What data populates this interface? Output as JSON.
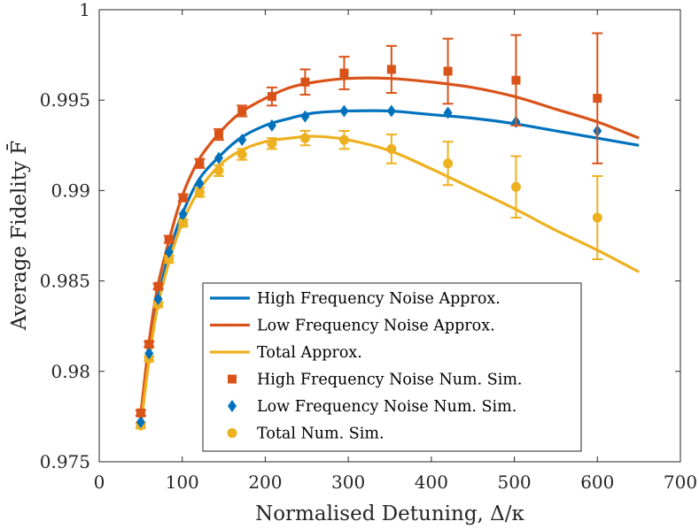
{
  "chart_data": {
    "type": "line",
    "xlabel": "Normalised Detuning, Δ/κ",
    "ylabel": "Average Fidelity F̄",
    "xlim": [
      0,
      700
    ],
    "ylim": [
      0.975,
      1.0
    ],
    "xticks": [
      "0",
      "100",
      "200",
      "300",
      "400",
      "500",
      "600",
      "700"
    ],
    "yticks": [
      "0.975",
      "0.98",
      "0.985",
      "0.99",
      "0.995",
      "1"
    ],
    "grid": false,
    "legend_position": "lower-center",
    "colors": {
      "blue": "#0072BD",
      "orange": "#D95319",
      "yellow": "#EDB120"
    },
    "series": [
      {
        "name": "High Frequency Noise Approx.",
        "kind": "line",
        "color": "#0072BD",
        "x": [
          50,
          60,
          70,
          85,
          100,
          120,
          145,
          170,
          200,
          230,
          260,
          300,
          350,
          400,
          450,
          500,
          550,
          600,
          650
        ],
        "y": [
          0.9773,
          0.9808,
          0.9838,
          0.9867,
          0.9887,
          0.9906,
          0.9919,
          0.9929,
          0.9936,
          0.994,
          0.9943,
          0.9944,
          0.9944,
          0.9942,
          0.994,
          0.9937,
          0.9933,
          0.9929,
          0.9925
        ]
      },
      {
        "name": "Low Frequency Noise Approx.",
        "kind": "line",
        "color": "#D95319",
        "x": [
          50,
          60,
          70,
          85,
          100,
          120,
          145,
          170,
          200,
          230,
          260,
          300,
          350,
          400,
          450,
          500,
          550,
          600,
          650
        ],
        "y": [
          0.9776,
          0.9816,
          0.9846,
          0.9874,
          0.9897,
          0.9917,
          0.9932,
          0.9943,
          0.9951,
          0.9957,
          0.996,
          0.9962,
          0.9962,
          0.996,
          0.9957,
          0.9952,
          0.9945,
          0.9938,
          0.9929
        ]
      },
      {
        "name": "Total Approx.",
        "kind": "line",
        "color": "#EDB120",
        "x": [
          50,
          60,
          70,
          85,
          100,
          120,
          145,
          170,
          200,
          230,
          260,
          300,
          350,
          400,
          450,
          500,
          550,
          600,
          650
        ],
        "y": [
          0.977,
          0.9806,
          0.9835,
          0.9862,
          0.9882,
          0.99,
          0.9914,
          0.9922,
          0.9927,
          0.9929,
          0.993,
          0.9928,
          0.9922,
          0.9912,
          0.9901,
          0.989,
          0.9878,
          0.9867,
          0.9855
        ]
      },
      {
        "name": "High Frequency Noise Num. Sim.",
        "kind": "scatter",
        "marker": "square",
        "color": "#D95319",
        "x": [
          50,
          60,
          71,
          84,
          101,
          121,
          144,
          172,
          208,
          248,
          295,
          352,
          420,
          502,
          600
        ],
        "y": [
          0.9777,
          0.9815,
          0.9847,
          0.9873,
          0.9896,
          0.9915,
          0.9931,
          0.9944,
          0.9952,
          0.996,
          0.9965,
          0.9967,
          0.9966,
          0.9961,
          0.9951
        ],
        "err": [
          0.00015,
          0.00015,
          0.00015,
          0.0002,
          0.0002,
          0.00025,
          0.0003,
          0.0003,
          0.0005,
          0.0007,
          0.0009,
          0.0013,
          0.0018,
          0.0025,
          0.0036
        ]
      },
      {
        "name": "Low Frequency Noise Num. Sim.",
        "kind": "scatter",
        "marker": "diamond",
        "color": "#0072BD",
        "x": [
          50,
          60,
          71,
          84,
          101,
          121,
          144,
          172,
          208,
          248,
          295,
          352,
          420,
          502,
          600
        ],
        "y": [
          0.9772,
          0.981,
          0.984,
          0.9866,
          0.9887,
          0.9904,
          0.9918,
          0.9928,
          0.9936,
          0.9941,
          0.9944,
          0.9944,
          0.9943,
          0.9938,
          0.9933
        ],
        "err": []
      },
      {
        "name": "Total Num. Sim.",
        "kind": "scatter",
        "marker": "circle",
        "color": "#EDB120",
        "x": [
          50,
          60,
          71,
          84,
          101,
          121,
          144,
          172,
          208,
          248,
          295,
          352,
          420,
          502,
          600
        ],
        "y": [
          0.977,
          0.9807,
          0.9837,
          0.9862,
          0.9882,
          0.9899,
          0.9911,
          0.992,
          0.9926,
          0.9929,
          0.9928,
          0.9923,
          0.9915,
          0.9902,
          0.9885
        ],
        "err": [
          0.00015,
          0.00015,
          0.00015,
          0.0002,
          0.0002,
          0.00025,
          0.0003,
          0.0003,
          0.0003,
          0.0004,
          0.0005,
          0.0008,
          0.0012,
          0.0017,
          0.0023
        ]
      }
    ]
  }
}
